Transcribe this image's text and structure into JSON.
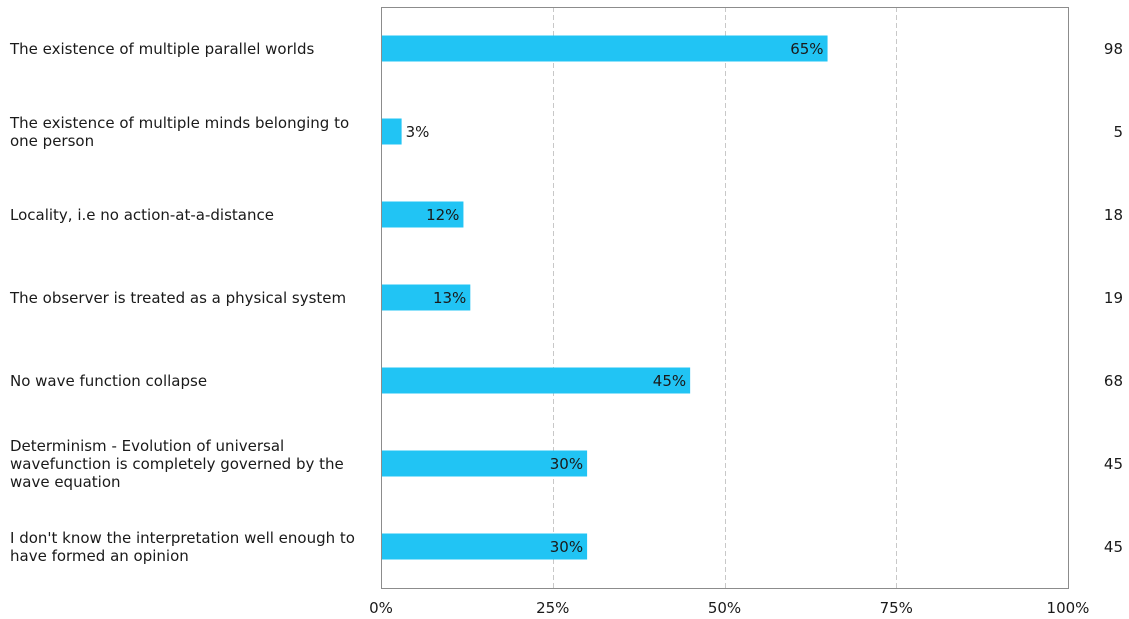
{
  "chart_data": {
    "type": "bar",
    "orientation": "horizontal",
    "title": "",
    "xlabel": "",
    "ylabel": "",
    "xlim": [
      0,
      100
    ],
    "x_ticks": [
      "0%",
      "25%",
      "50%",
      "75%",
      "100%"
    ],
    "grid": "vertical dashed",
    "bar_color": "#21c4f4",
    "categories": [
      "The existence of multiple parallel worlds",
      "The existence of multiple minds belonging to one person",
      "Locality, i.e no action-at-a-distance",
      "The observer is treated as a physical system",
      "No wave function collapse",
      "Determinism - Evolution of universal wavefunction is completely governed by the wave equation",
      "I don't know the interpretation well enough to have formed an opinion"
    ],
    "values": [
      65,
      3,
      12,
      13,
      45,
      30,
      30
    ],
    "value_labels": [
      "65%",
      "3%",
      "12%",
      "13%",
      "45%",
      "30%",
      "30%"
    ],
    "counts": [
      "98",
      "5",
      "18",
      "19",
      "68",
      "45",
      "45"
    ]
  }
}
